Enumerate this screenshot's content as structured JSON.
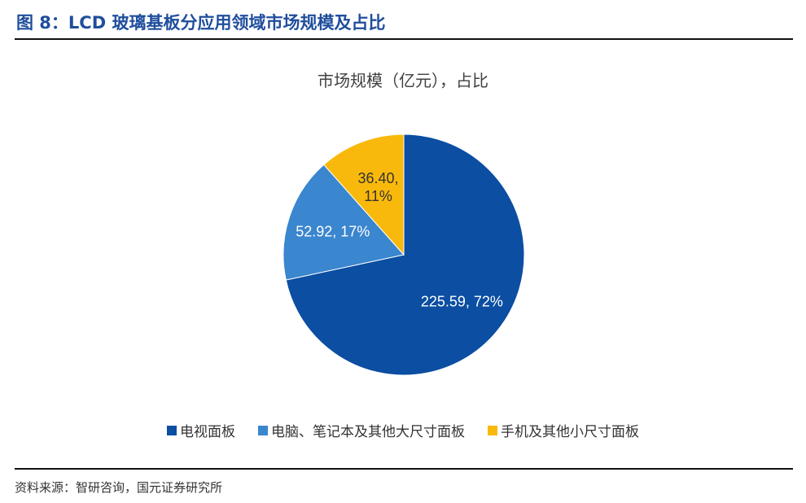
{
  "figure_title": "图 8：LCD 玻璃基板分应用领域市场规模及占比",
  "source": "资料来源：智研咨询，国元证券研究所",
  "chart_data": {
    "type": "pie",
    "title": "市场规模（亿元），占比",
    "legend_position": "bottom",
    "slices": [
      {
        "name": "电视面板",
        "value": 225.59,
        "percent": "72%",
        "label": "225.59, 72%",
        "color": "#0b4ea2",
        "label_color": "#ffffff"
      },
      {
        "name": "电脑、笔记本及其他大尺寸面板",
        "value": 52.92,
        "percent": "17%",
        "label": "52.92, 17%",
        "color": "#3a86cf",
        "label_color": "#ffffff"
      },
      {
        "name": "手机及其他小尺寸面板",
        "value": 36.4,
        "percent": "11%",
        "label": "36.40,\n11%",
        "color": "#f9b90c",
        "label_color": "#333333"
      }
    ]
  }
}
